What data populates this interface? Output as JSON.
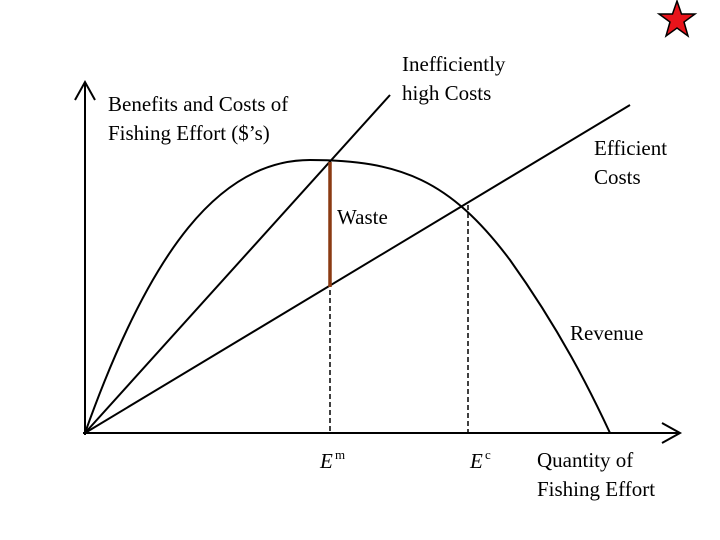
{
  "y_axis_label": [
    "Benefits and Costs of",
    "Fishing Effort ($’s)"
  ],
  "inefficient_label": [
    "Inefficiently",
    "high Costs"
  ],
  "efficient_label": [
    "Efficient",
    "Costs"
  ],
  "waste_label": "Waste",
  "revenue_label": "Revenue",
  "em_label": {
    "base": "E",
    "sup": "m"
  },
  "ec_label": {
    "base": "E",
    "sup": "c"
  },
  "x_axis_label": [
    "Quantity of",
    "Fishing Effort"
  ]
}
